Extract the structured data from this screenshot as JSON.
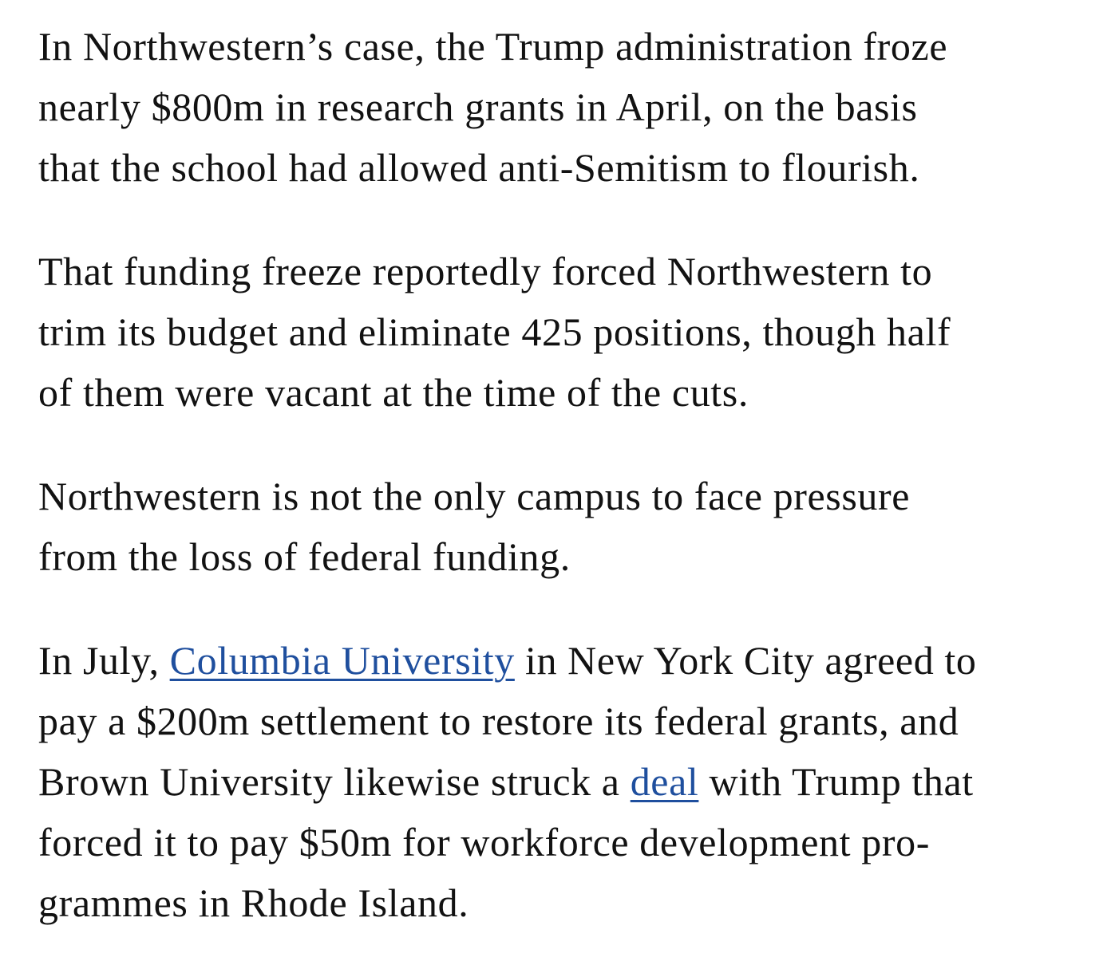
{
  "link_color": "#1f4f9e",
  "paragraphs": [
    {
      "lines": [
        "In Northwestern’s case, the Trump administration froze",
        "nearly $800m in research grants in April, on the basis",
        "that the school had allowed anti-Semitism to flourish."
      ]
    },
    {
      "lines": [
        "That funding freeze reportedly forced Northwestern to",
        "trim its budget and eliminate 425 positions, though half",
        "of them were vacant at the time of the cuts."
      ]
    },
    {
      "lines": [
        "Northwestern is not the only campus to face pressure",
        "from the loss of federal funding."
      ]
    },
    {
      "line1": {
        "before": "In July, ",
        "link": "Columbia University",
        "after": " in New York City agreed to"
      },
      "line2": "pay a $200m settlement to restore its federal grants, and",
      "line3": {
        "before": "Brown University likewise struck a ",
        "link": "deal",
        "after": " with Trump that"
      },
      "line4": "forced it to pay $50m for workforce development pro-",
      "line5": "grammes in Rhode Island."
    }
  ]
}
